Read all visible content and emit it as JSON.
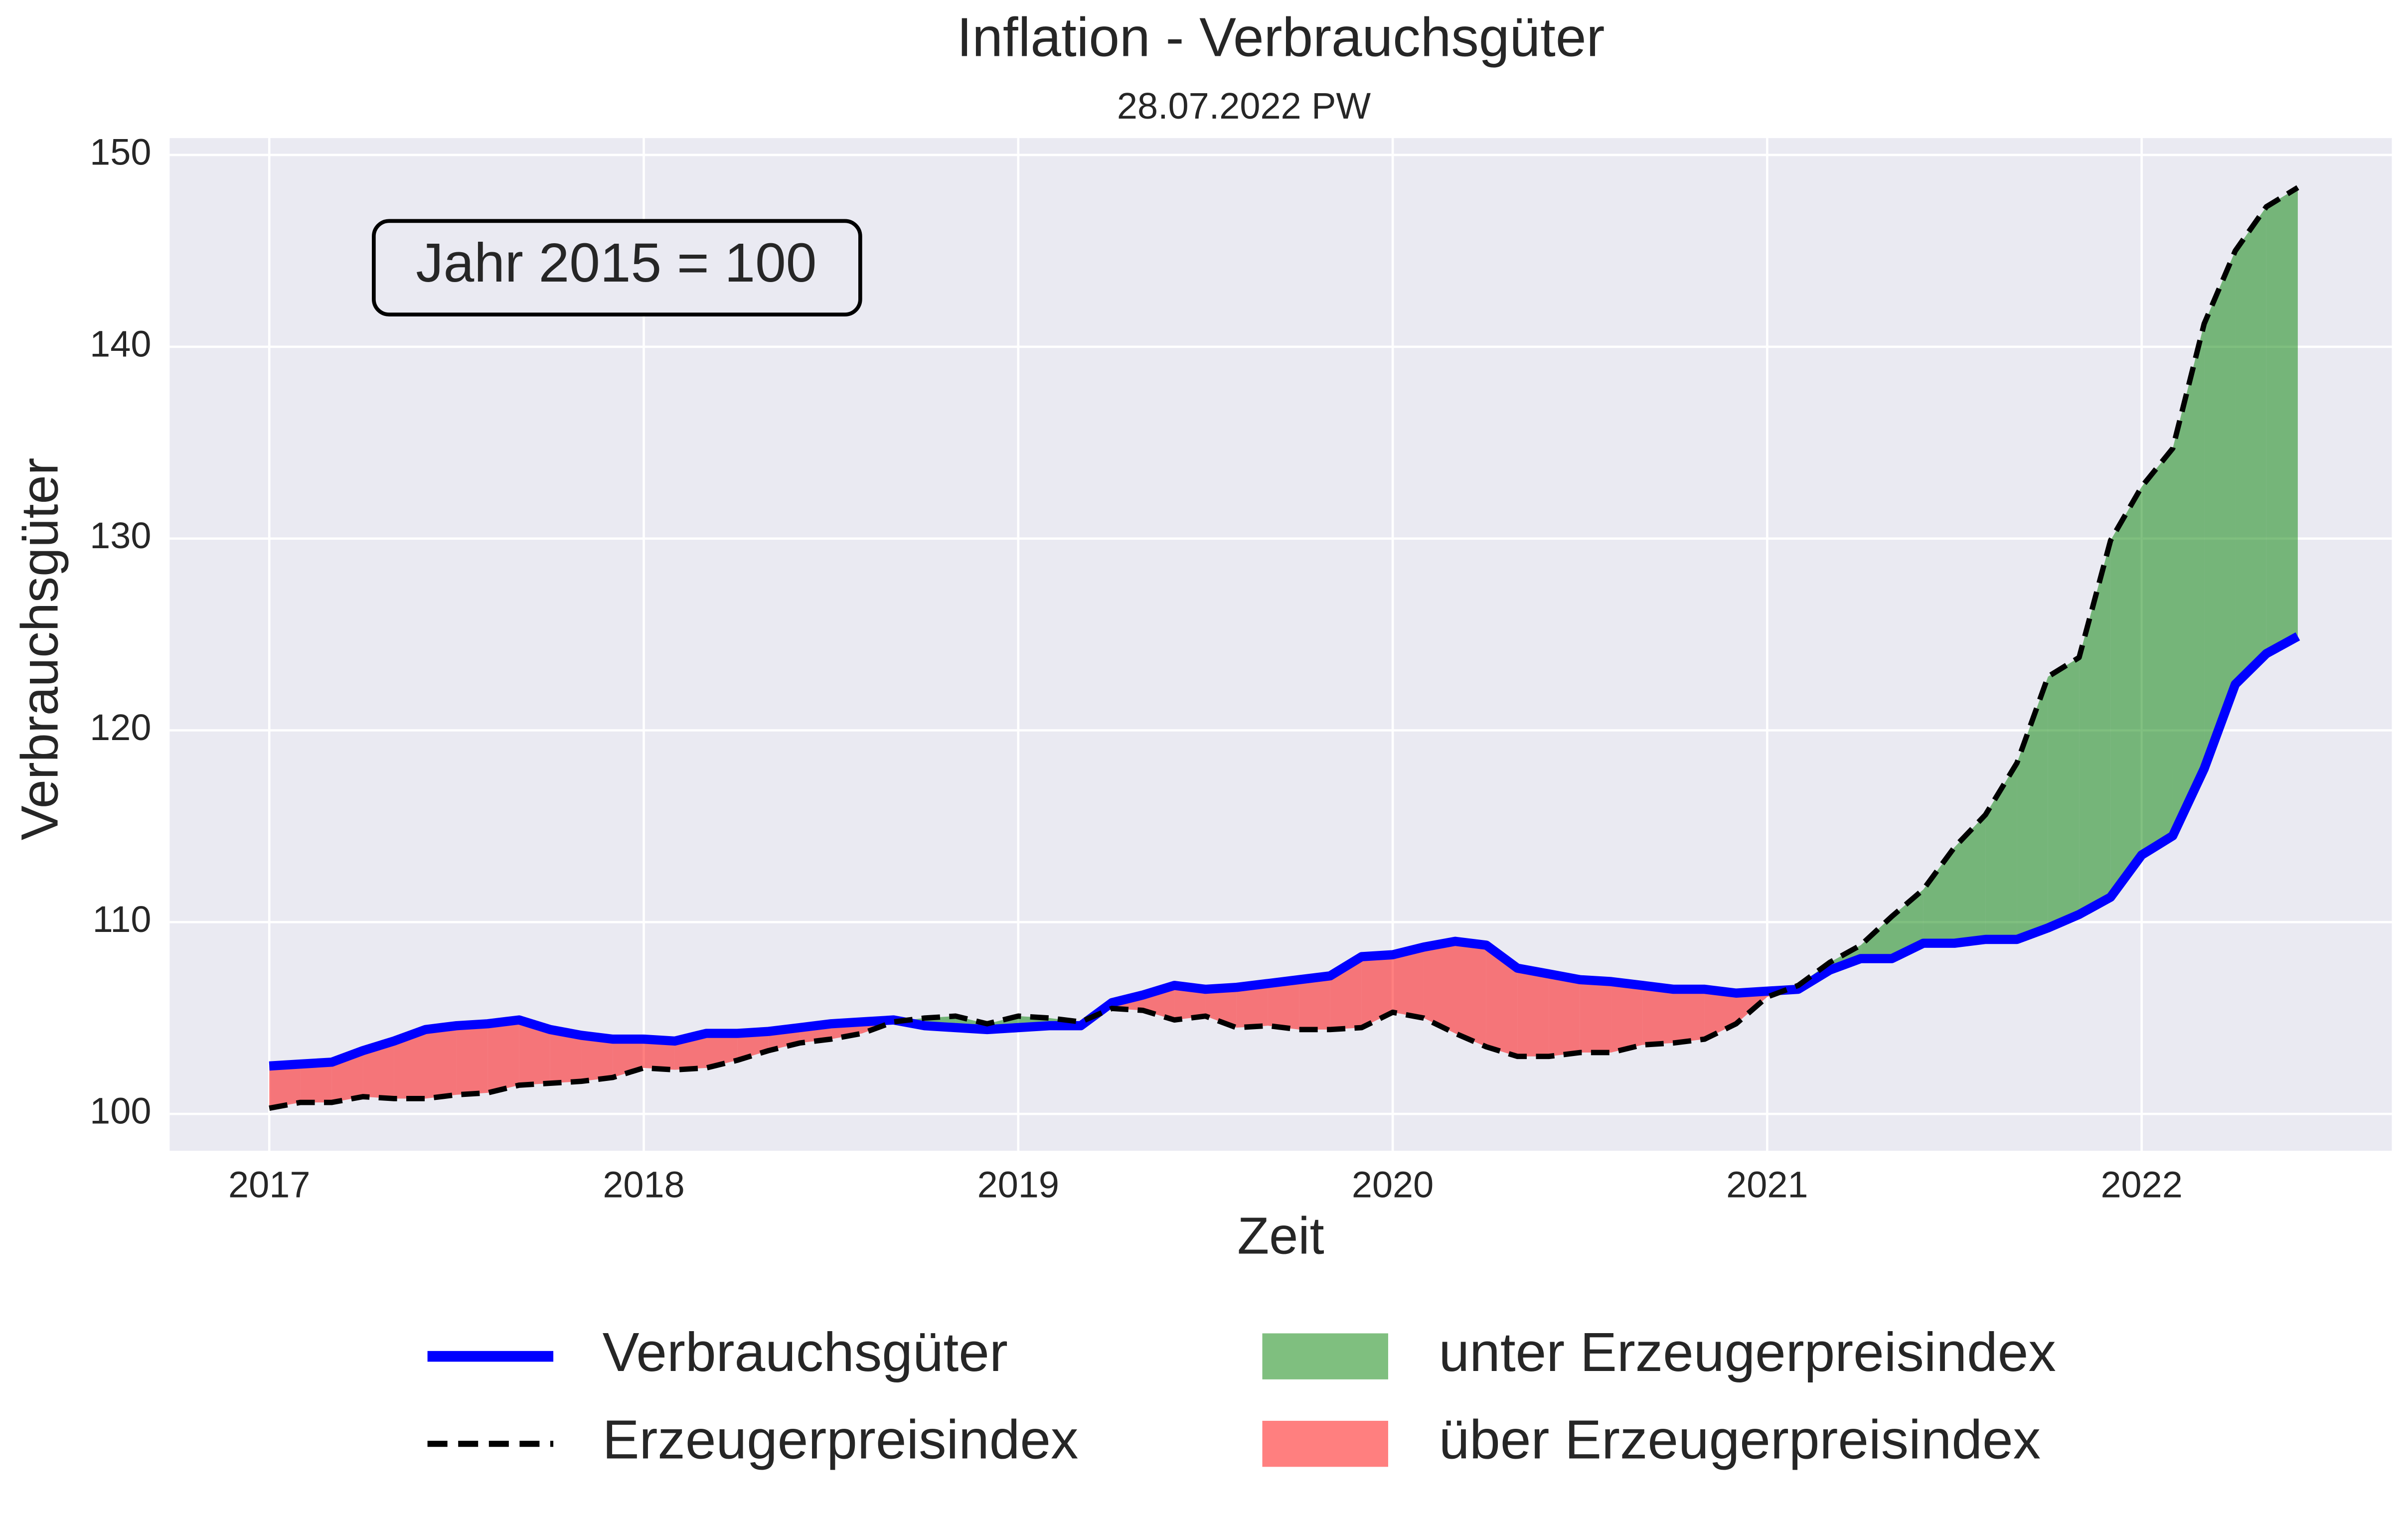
{
  "chart_data": {
    "type": "line",
    "title": "Inflation - Verbrauchsgüter",
    "subtitle": "28.07.2022 PW",
    "annotation": "Jahr 2015 = 100",
    "x_label": "Zeit",
    "y_label": "Verbrauchsgüter",
    "x": [
      2017,
      2017.083,
      2017.167,
      2017.25,
      2017.333,
      2017.417,
      2017.5,
      2017.583,
      2017.667,
      2017.75,
      2017.833,
      2017.917,
      2018,
      2018.083,
      2018.167,
      2018.25,
      2018.333,
      2018.417,
      2018.5,
      2018.583,
      2018.667,
      2018.75,
      2018.833,
      2018.917,
      2019,
      2019.083,
      2019.167,
      2019.25,
      2019.333,
      2019.417,
      2019.5,
      2019.583,
      2019.667,
      2019.75,
      2019.833,
      2019.917,
      2020,
      2020.083,
      2020.167,
      2020.25,
      2020.333,
      2020.417,
      2020.5,
      2020.583,
      2020.667,
      2020.75,
      2020.833,
      2020.917,
      2021,
      2021.083,
      2021.167,
      2021.25,
      2021.333,
      2021.417,
      2021.5,
      2021.583,
      2021.667,
      2021.75,
      2021.833,
      2021.917,
      2022,
      2022.083,
      2022.167,
      2022.25,
      2022.333,
      2022.417
    ],
    "series": [
      {
        "name": "Verbrauchsgüter",
        "color": "#0000ff",
        "dash": false,
        "values": [
          102.5,
          102.6,
          102.7,
          103.3,
          103.8,
          104.4,
          104.6,
          104.7,
          104.9,
          104.4,
          104.1,
          103.9,
          103.9,
          103.8,
          104.2,
          104.2,
          104.3,
          104.5,
          104.7,
          104.8,
          104.9,
          104.6,
          104.5,
          104.4,
          104.5,
          104.6,
          104.6,
          105.8,
          106.2,
          106.7,
          106.5,
          106.6,
          106.8,
          107.0,
          107.2,
          108.2,
          108.3,
          108.7,
          109.0,
          108.8,
          107.6,
          107.3,
          107.0,
          106.9,
          106.7,
          106.5,
          106.5,
          106.3,
          106.4,
          106.5,
          107.5,
          108.1,
          108.1,
          108.9,
          108.9,
          109.1,
          109.1,
          109.7,
          110.4,
          111.3,
          113.5,
          114.5,
          118.0,
          122.4,
          124.0,
          124.9
        ]
      },
      {
        "name": "Erzeugerpreisindex",
        "color": "#000000",
        "dash": true,
        "values": [
          100.3,
          100.6,
          100.6,
          100.9,
          100.8,
          100.8,
          101.0,
          101.1,
          101.5,
          101.6,
          101.7,
          101.9,
          102.4,
          102.3,
          102.4,
          102.8,
          103.3,
          103.7,
          103.9,
          104.2,
          104.8,
          105.0,
          105.1,
          104.7,
          105.1,
          105.0,
          104.8,
          105.5,
          105.4,
          104.9,
          105.1,
          104.5,
          104.6,
          104.4,
          104.4,
          104.5,
          105.3,
          105.0,
          104.2,
          103.5,
          103.0,
          103.0,
          103.2,
          103.2,
          103.6,
          103.7,
          103.9,
          104.7,
          106.1,
          106.7,
          107.9,
          108.8,
          110.3,
          111.7,
          113.9,
          115.6,
          118.3,
          122.8,
          123.8,
          129.9,
          132.7,
          134.7,
          141.2,
          145.0,
          147.3,
          148.3
        ]
      }
    ],
    "fills": [
      {
        "name": "unter Erzeugerpreisindex",
        "color": "#008000",
        "alpha": 0.5
      },
      {
        "name": "über Erzeugerpreisindex",
        "color": "#ff0000",
        "alpha": 0.5
      }
    ],
    "xlim": [
      2016.734,
      2022.668
    ],
    "ylim": [
      98.08,
      150.88
    ],
    "xticks": [
      2017,
      2018,
      2019,
      2020,
      2021,
      2022
    ],
    "yticks": [
      100,
      110,
      120,
      130,
      140,
      150
    ],
    "grid": true,
    "legend": "bottom"
  }
}
